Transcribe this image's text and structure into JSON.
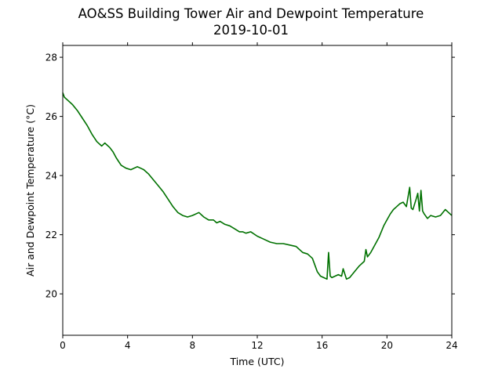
{
  "chart_data": {
    "type": "line",
    "title": "AO&SS Building Tower Air and Dewpoint Temperature",
    "subtitle": "2019-10-01",
    "xlabel": "Time (UTC)",
    "ylabel": "Air and Dewpoint Temperature (°C)",
    "xlim": [
      0,
      24
    ],
    "ylim": [
      18.6,
      28.4
    ],
    "xticks": [
      0,
      4,
      8,
      12,
      16,
      20,
      24
    ],
    "yticks": [
      20,
      22,
      24,
      26,
      28
    ],
    "grid": false,
    "series": [
      {
        "color": "#007100",
        "x": [
          0,
          0.1,
          0.3,
          0.6,
          0.9,
          1.2,
          1.5,
          1.8,
          2.1,
          2.4,
          2.6,
          2.9,
          3.1,
          3.3,
          3.6,
          3.9,
          4.2,
          4.6,
          4.8,
          5.0,
          5.3,
          5.6,
          5.9,
          6.2,
          6.5,
          6.8,
          7.1,
          7.4,
          7.7,
          8.0,
          8.4,
          8.7,
          9.0,
          9.3,
          9.5,
          9.7,
          10.0,
          10.3,
          10.6,
          10.9,
          11.1,
          11.3,
          11.6,
          12.0,
          12.4,
          12.8,
          13.2,
          13.6,
          14.0,
          14.4,
          14.8,
          15.1,
          15.4,
          15.7,
          15.9,
          16.1,
          16.3,
          16.4,
          16.5,
          16.6,
          16.8,
          17.0,
          17.2,
          17.3,
          17.5,
          17.7,
          18.0,
          18.3,
          18.6,
          18.7,
          18.8,
          19.0,
          19.2,
          19.5,
          19.8,
          20.0,
          20.2,
          20.4,
          20.6,
          20.8,
          21.0,
          21.2,
          21.4,
          21.5,
          21.6,
          21.8,
          21.9,
          22.0,
          22.1,
          22.2,
          22.3,
          22.5,
          22.7,
          23.0,
          23.3,
          23.6,
          23.8,
          24.0
        ],
        "values": [
          26.8,
          26.65,
          26.55,
          26.4,
          26.2,
          25.95,
          25.7,
          25.4,
          25.15,
          25.0,
          25.1,
          24.95,
          24.8,
          24.6,
          24.35,
          24.25,
          24.2,
          24.3,
          24.25,
          24.2,
          24.05,
          23.85,
          23.65,
          23.45,
          23.2,
          22.95,
          22.75,
          22.65,
          22.6,
          22.65,
          22.75,
          22.6,
          22.5,
          22.5,
          22.4,
          22.45,
          22.35,
          22.3,
          22.2,
          22.1,
          22.1,
          22.05,
          22.1,
          21.95,
          21.85,
          21.75,
          21.7,
          21.7,
          21.65,
          21.6,
          21.4,
          21.35,
          21.2,
          20.75,
          20.6,
          20.55,
          20.5,
          21.4,
          20.6,
          20.55,
          20.6,
          20.65,
          20.6,
          20.85,
          20.5,
          20.55,
          20.75,
          20.95,
          21.1,
          21.5,
          21.25,
          21.4,
          21.6,
          21.9,
          22.3,
          22.5,
          22.7,
          22.85,
          22.95,
          23.05,
          23.1,
          22.95,
          23.6,
          22.9,
          22.85,
          23.2,
          23.4,
          22.8,
          23.5,
          22.8,
          22.7,
          22.55,
          22.65,
          22.6,
          22.65,
          22.85,
          22.75,
          22.65
        ]
      }
    ]
  }
}
